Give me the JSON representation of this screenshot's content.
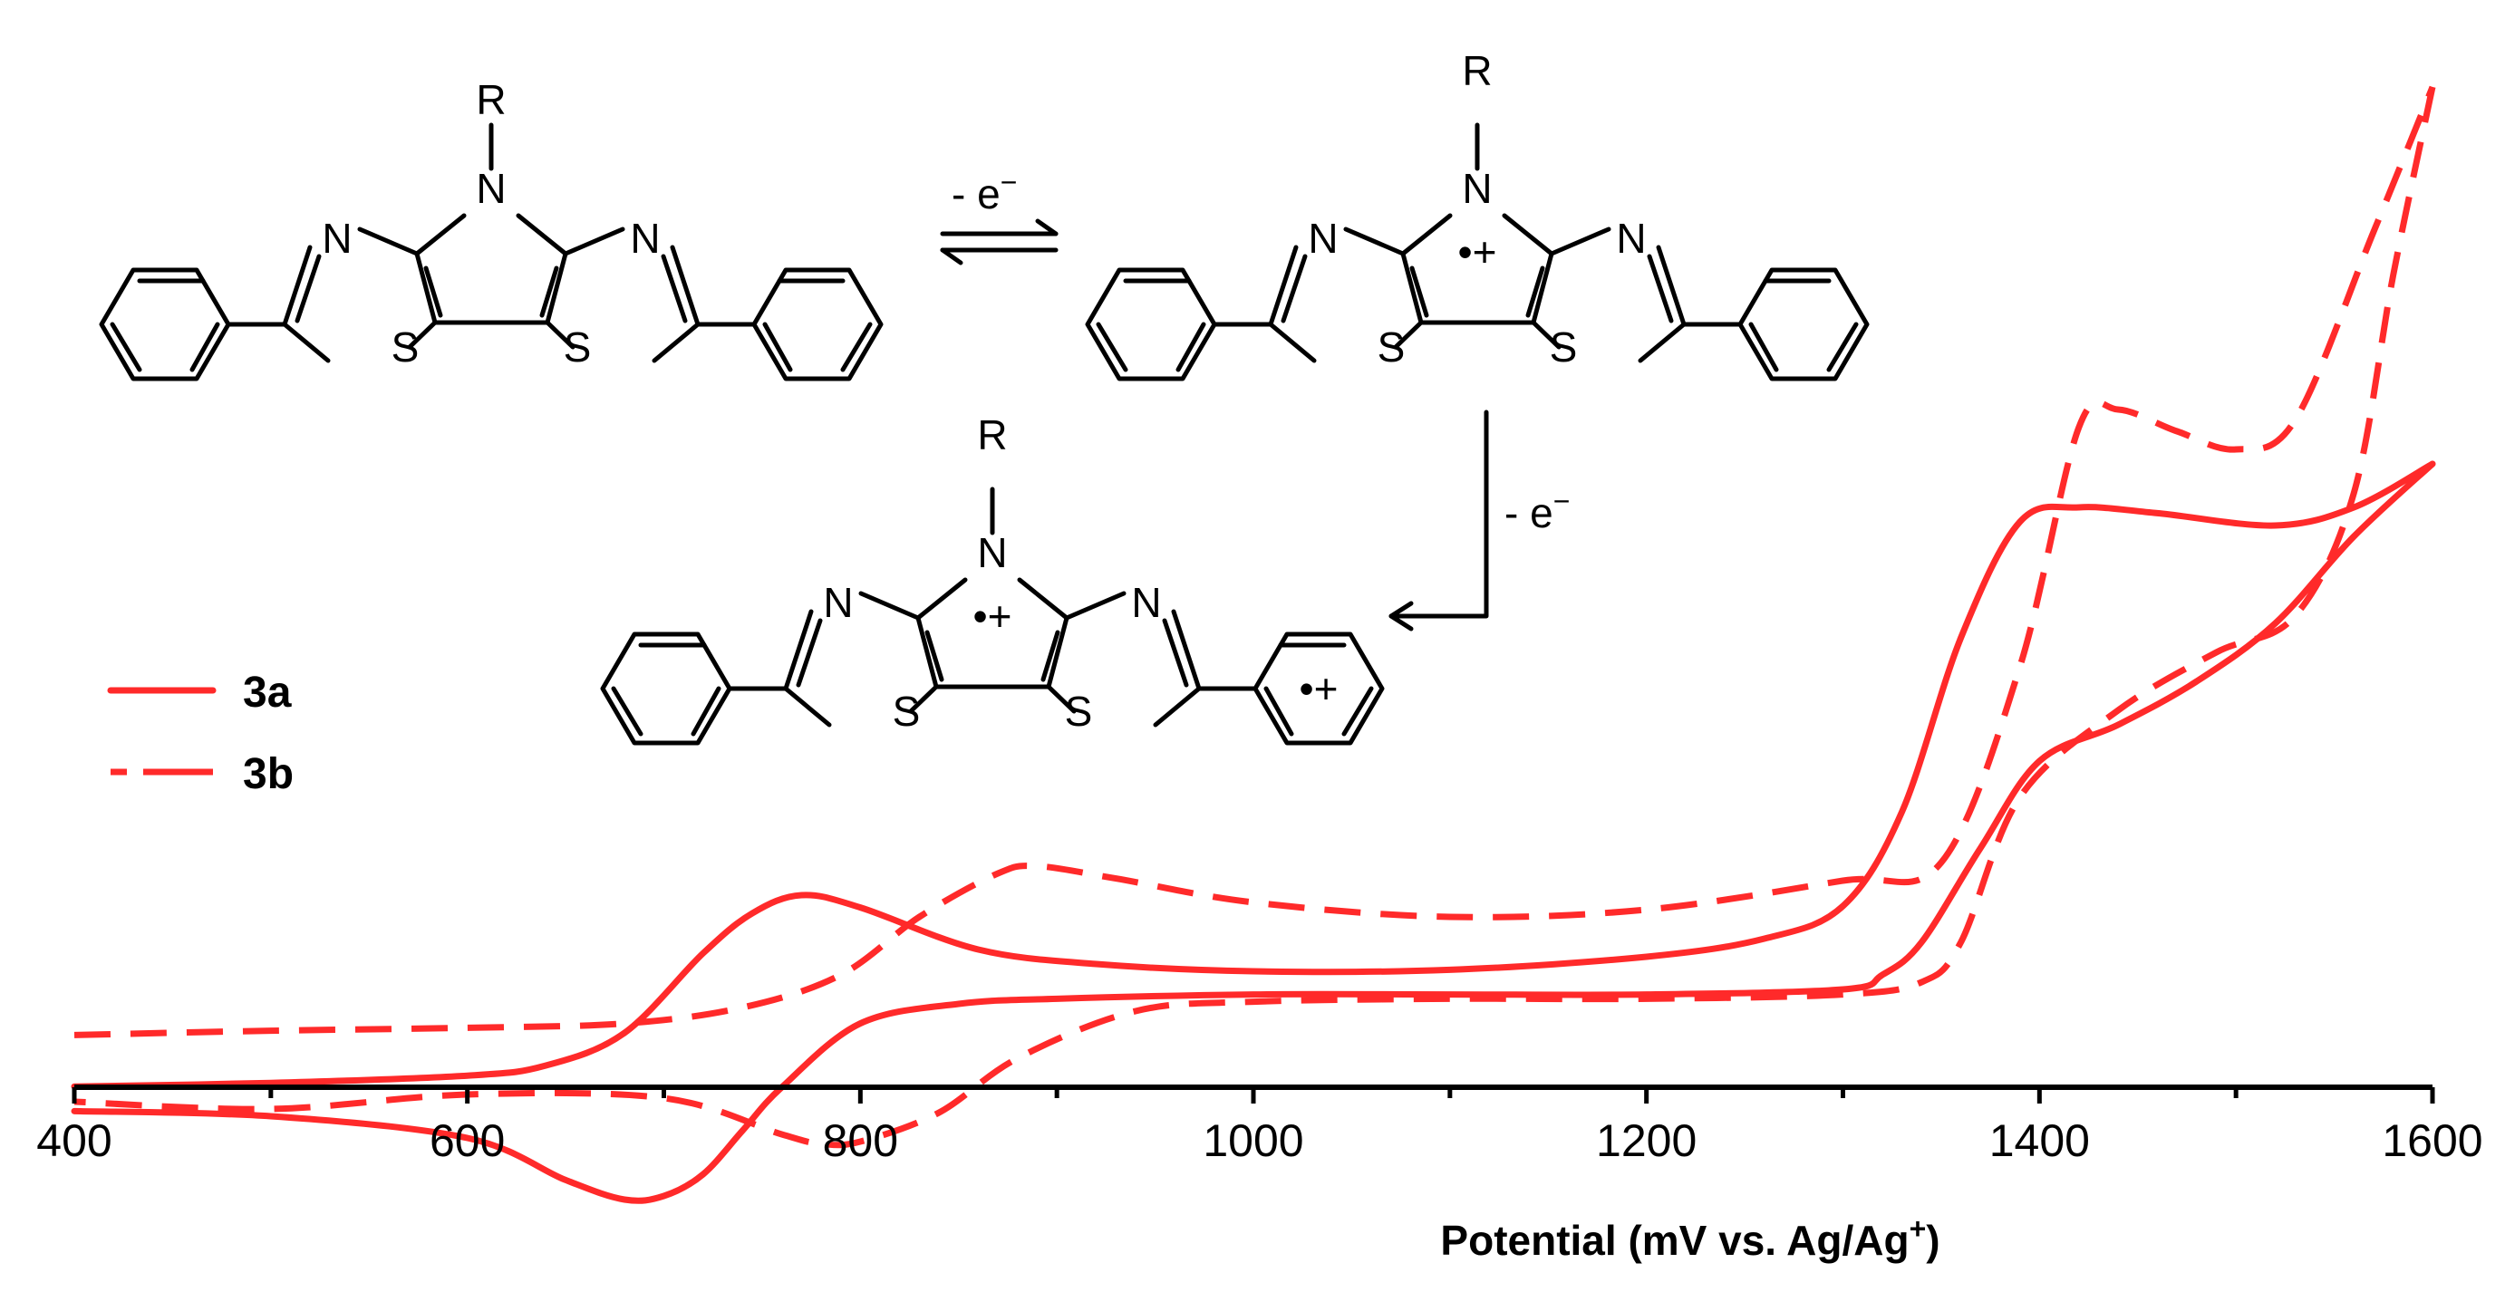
{
  "chart_data": {
    "type": "line",
    "title": "",
    "xlabel": "Potential (mV vs. Ag/Ag",
    "xlabel_superscript": "+",
    "xlabel_close": ")",
    "ylabel": "",
    "xlim": [
      400,
      1600
    ],
    "x_ticks": [
      400,
      600,
      800,
      1000,
      1200,
      1400,
      1600
    ],
    "x_minor_ticks": [
      500,
      700,
      900,
      1100,
      1300,
      1500
    ],
    "legend_position": "middle-left",
    "series": [
      {
        "name": "3a",
        "style": "solid",
        "color": "#ff2a2a",
        "forward": [
          [
            400,
            1
          ],
          [
            500,
            6
          ],
          [
            600,
            16
          ],
          [
            640,
            30
          ],
          [
            680,
            75
          ],
          [
            720,
            185
          ],
          [
            745,
            240
          ],
          [
            770,
            265
          ],
          [
            800,
            248
          ],
          [
            860,
            190
          ],
          [
            920,
            170
          ],
          [
            1000,
            160
          ],
          [
            1100,
            162
          ],
          [
            1200,
            180
          ],
          [
            1260,
            205
          ],
          [
            1300,
            250
          ],
          [
            1330,
            380
          ],
          [
            1360,
            620
          ],
          [
            1390,
            780
          ],
          [
            1420,
            800
          ],
          [
            1460,
            792
          ],
          [
            1520,
            775
          ],
          [
            1560,
            800
          ],
          [
            1600,
            860
          ]
        ],
        "reverse": [
          [
            1600,
            860
          ],
          [
            1560,
            760
          ],
          [
            1520,
            640
          ],
          [
            1480,
            560
          ],
          [
            1440,
            500
          ],
          [
            1400,
            450
          ],
          [
            1370,
            330
          ],
          [
            1340,
            200
          ],
          [
            1320,
            155
          ],
          [
            1300,
            135
          ],
          [
            1200,
            128
          ],
          [
            1100,
            128
          ],
          [
            1000,
            128
          ],
          [
            900,
            122
          ],
          [
            850,
            115
          ],
          [
            800,
            88
          ],
          [
            760,
            0
          ],
          [
            740,
            -60
          ],
          [
            720,
            -120
          ],
          [
            700,
            -150
          ],
          [
            680,
            -155
          ],
          [
            650,
            -128
          ],
          [
            600,
            -70
          ],
          [
            500,
            -40
          ],
          [
            400,
            -33
          ]
        ]
      },
      {
        "name": "3b",
        "style": "dashed",
        "color": "#ff2a2a",
        "forward": [
          [
            400,
            72
          ],
          [
            500,
            78
          ],
          [
            600,
            82
          ],
          [
            680,
            88
          ],
          [
            740,
            110
          ],
          [
            790,
            155
          ],
          [
            830,
            235
          ],
          [
            870,
            295
          ],
          [
            890,
            305
          ],
          [
            930,
            288
          ],
          [
            1000,
            255
          ],
          [
            1100,
            235
          ],
          [
            1200,
            245
          ],
          [
            1300,
            285
          ],
          [
            1350,
            310
          ],
          [
            1390,
            580
          ],
          [
            1420,
            910
          ],
          [
            1440,
            935
          ],
          [
            1470,
            905
          ],
          [
            1500,
            880
          ],
          [
            1530,
            920
          ],
          [
            1570,
            1180
          ],
          [
            1600,
            1380
          ]
        ],
        "reverse": [
          [
            1600,
            1380
          ],
          [
            1580,
            1120
          ],
          [
            1560,
            820
          ],
          [
            1530,
            650
          ],
          [
            1490,
            600
          ],
          [
            1440,
            520
          ],
          [
            1390,
            400
          ],
          [
            1360,
            200
          ],
          [
            1340,
            145
          ],
          [
            1300,
            128
          ],
          [
            1200,
            122
          ],
          [
            1100,
            122
          ],
          [
            1000,
            118
          ],
          [
            940,
            105
          ],
          [
            880,
            40
          ],
          [
            840,
            -35
          ],
          [
            800,
            -75
          ],
          [
            780,
            -78
          ],
          [
            760,
            -65
          ],
          [
            700,
            -15
          ],
          [
            600,
            -10
          ],
          [
            500,
            -30
          ],
          [
            400,
            -20
          ]
        ]
      }
    ]
  },
  "scheme": {
    "charge_label": "•+",
    "step1_label": "- e",
    "step2_label": "- e",
    "electron_superscript": "−",
    "atoms": {
      "R": "R",
      "N": "N",
      "S": "S"
    }
  }
}
